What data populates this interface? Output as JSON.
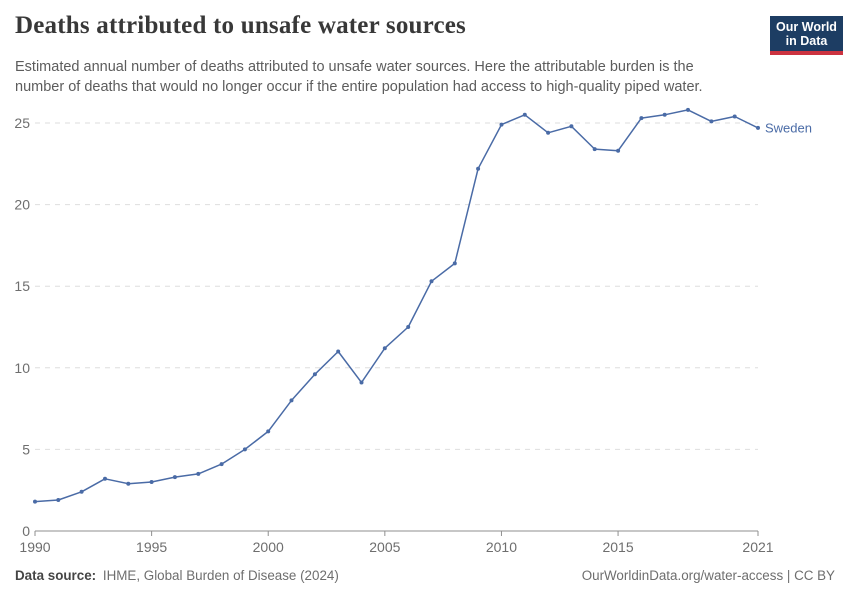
{
  "header": {
    "logo": {
      "line1": "Our World",
      "line2": "in Data"
    }
  },
  "chart_data": {
    "type": "line",
    "title": "Deaths attributed to unsafe water sources",
    "subtitle": "Estimated annual number of deaths attributed to unsafe water sources. Here the attributable burden is the number of deaths that would no longer occur if the entire population had access to high-quality piped water.",
    "xlabel": "",
    "ylabel": "",
    "xlim": [
      1990,
      2021
    ],
    "ylim": [
      0,
      26
    ],
    "x_ticks": [
      1990,
      1995,
      2000,
      2005,
      2010,
      2015,
      2021
    ],
    "y_ticks": [
      0,
      5,
      10,
      15,
      20,
      25
    ],
    "grid": "horizontal-dashed",
    "legend": "end-of-line-label",
    "x": [
      1990,
      1991,
      1992,
      1993,
      1994,
      1995,
      1996,
      1997,
      1998,
      1999,
      2000,
      2001,
      2002,
      2003,
      2004,
      2005,
      2006,
      2007,
      2008,
      2009,
      2010,
      2011,
      2012,
      2013,
      2014,
      2015,
      2016,
      2017,
      2018,
      2019,
      2020,
      2021
    ],
    "series": [
      {
        "name": "Sweden",
        "color": "#4a6ba6",
        "values": [
          1.8,
          1.9,
          2.4,
          3.2,
          2.9,
          3.0,
          3.3,
          3.5,
          4.1,
          5.0,
          6.1,
          8.0,
          9.6,
          11.0,
          9.1,
          11.2,
          12.5,
          15.3,
          16.4,
          22.2,
          24.9,
          25.5,
          24.4,
          24.8,
          23.4,
          23.3,
          25.3,
          25.5,
          25.8,
          25.1,
          25.4,
          24.7
        ]
      }
    ]
  },
  "footer": {
    "datasource_label": "Data source:",
    "datasource_value": "IHME, Global Burden of Disease (2024)",
    "credit": "OurWorldinData.org/water-access | CC BY"
  },
  "colors": {
    "line": "#4a6ba6",
    "grid": "#dedede",
    "axis": "#8f8f8f",
    "tick_label": "#6e6e6e",
    "title": "#383838",
    "subtitle": "#5c5c5c",
    "logo_bg": "#1d3d63",
    "logo_bar": "#cc3340"
  }
}
